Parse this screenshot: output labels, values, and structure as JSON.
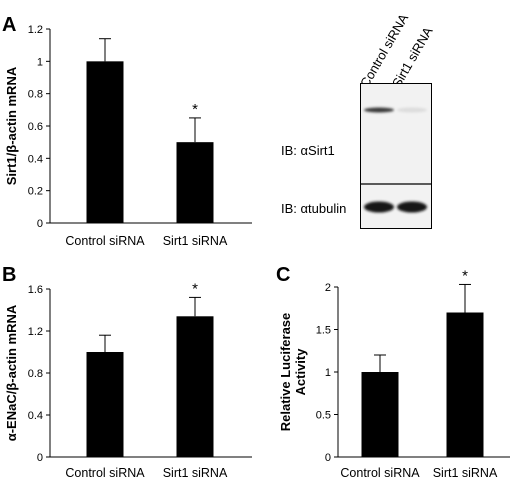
{
  "panels": [
    {
      "letter": "A"
    },
    {
      "letter": "B"
    },
    {
      "letter": "C"
    }
  ],
  "chart_data": [
    {
      "type": "bar",
      "panel": "A",
      "categories": [
        "Control siRNA",
        "Sirt1 siRNA"
      ],
      "values": [
        1.0,
        0.5
      ],
      "errors": [
        0.14,
        0.15
      ],
      "significance": [
        "",
        "*"
      ],
      "ylabel": "Sirt1/β-actin mRNA",
      "ylim": [
        0,
        1.2
      ],
      "yticks": [
        "0",
        "0.2",
        "0.4",
        "0.6",
        "0.8",
        "1",
        "1.2"
      ],
      "grid": false,
      "bar_color": "#000000"
    },
    {
      "type": "bar",
      "panel": "B",
      "categories": [
        "Control siRNA",
        "Sirt1 siRNA"
      ],
      "values": [
        1.0,
        1.34
      ],
      "errors": [
        0.16,
        0.18
      ],
      "significance": [
        "",
        "*"
      ],
      "ylabel": "α-ENaC/β-actin mRNA",
      "ylim": [
        0,
        1.6
      ],
      "yticks": [
        "0",
        "0.4",
        "0.8",
        "1.2",
        "1.6"
      ],
      "grid": false,
      "bar_color": "#000000"
    },
    {
      "type": "bar",
      "panel": "C",
      "categories": [
        "Control siRNA",
        "Sirt1 siRNA"
      ],
      "values": [
        1.0,
        1.7
      ],
      "errors": [
        0.2,
        0.33
      ],
      "significance": [
        "",
        "*"
      ],
      "ylabel_lines": [
        "Relative Luciferase",
        "Activity"
      ],
      "ylim": [
        0,
        2
      ],
      "yticks": [
        "0",
        "0.5",
        "1",
        "1.5",
        "2"
      ],
      "grid": false,
      "bar_color": "#000000"
    }
  ],
  "blot": {
    "lanes": [
      "Control siRNA",
      "Sirt1 siRNA"
    ],
    "rows": [
      {
        "label": "IB: αSirt1",
        "band_intensity": [
          0.85,
          0.15
        ]
      },
      {
        "label": "IB: αtubulin",
        "band_intensity": [
          1.0,
          1.0
        ]
      }
    ]
  }
}
